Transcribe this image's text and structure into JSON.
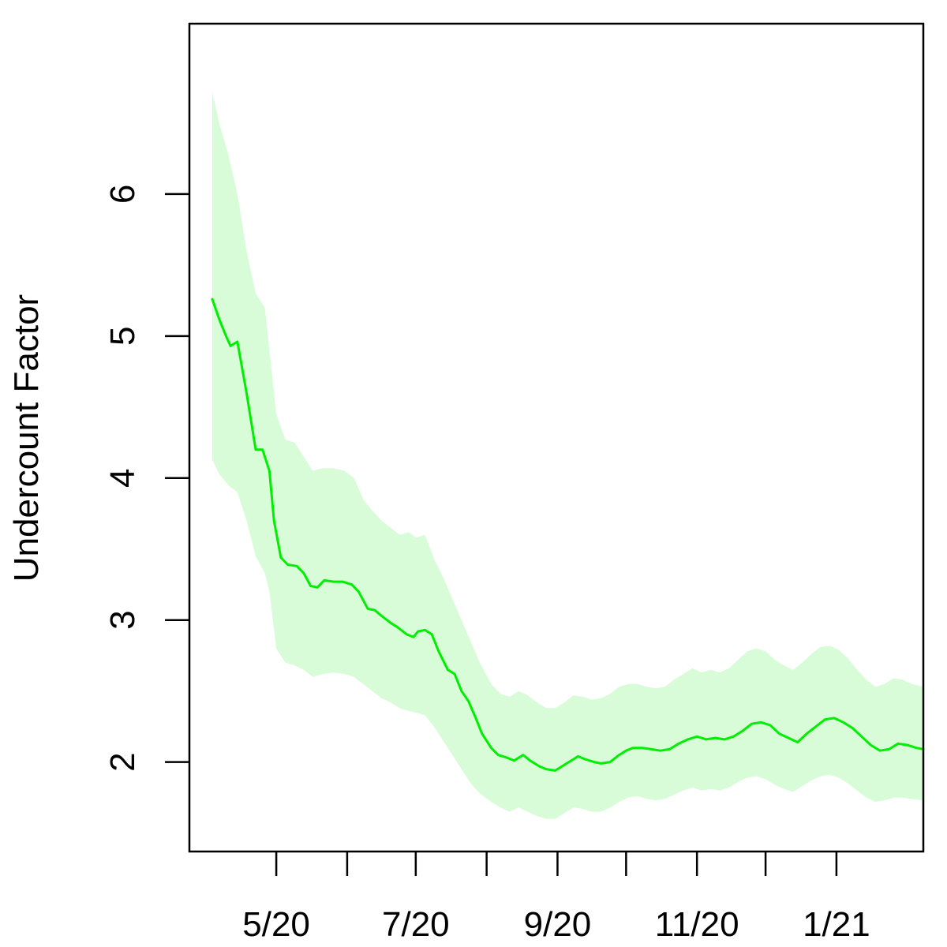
{
  "chart_data": {
    "type": "line",
    "title": "",
    "xlabel": "",
    "ylabel": "Undercount Factor",
    "x_unit": "date",
    "xlim": [
      "2020-03-24",
      "2021-02-08"
    ],
    "ylim": [
      1.37,
      7.2
    ],
    "grid": false,
    "legend": "none",
    "x_ticks": [
      {
        "date": "2020-05-01",
        "label": "5/20"
      },
      {
        "date": "2020-06-01",
        "label": ""
      },
      {
        "date": "2020-07-01",
        "label": "7/20"
      },
      {
        "date": "2020-08-01",
        "label": ""
      },
      {
        "date": "2020-09-01",
        "label": "9/20"
      },
      {
        "date": "2020-10-01",
        "label": ""
      },
      {
        "date": "2020-11-01",
        "label": "11/20"
      },
      {
        "date": "2020-12-01",
        "label": ""
      },
      {
        "date": "2021-01-01",
        "label": "1/21"
      }
    ],
    "y_ticks": [
      {
        "value": 2,
        "label": "2"
      },
      {
        "value": 3,
        "label": "3"
      },
      {
        "value": 4,
        "label": "4"
      },
      {
        "value": 5,
        "label": "5"
      },
      {
        "value": 6,
        "label": "6"
      }
    ],
    "colors": {
      "line": "#00ee00",
      "band": "#d8fcd8"
    },
    "series": [
      {
        "style": "line",
        "points": [
          [
            "2020-04-03",
            5.26
          ],
          [
            "2020-04-06",
            5.12
          ],
          [
            "2020-04-09",
            5.0
          ],
          [
            "2020-04-11",
            4.93
          ],
          [
            "2020-04-14",
            4.96
          ],
          [
            "2020-04-18",
            4.6
          ],
          [
            "2020-04-22",
            4.2
          ],
          [
            "2020-04-25",
            4.2
          ],
          [
            "2020-04-28",
            4.05
          ],
          [
            "2020-04-30",
            3.7
          ],
          [
            "2020-05-03",
            3.44
          ],
          [
            "2020-05-06",
            3.39
          ],
          [
            "2020-05-10",
            3.38
          ],
          [
            "2020-05-13",
            3.33
          ],
          [
            "2020-05-16",
            3.24
          ],
          [
            "2020-05-19",
            3.23
          ],
          [
            "2020-05-22",
            3.28
          ],
          [
            "2020-05-26",
            3.27
          ],
          [
            "2020-05-30",
            3.27
          ],
          [
            "2020-06-03",
            3.25
          ],
          [
            "2020-06-06",
            3.2
          ],
          [
            "2020-06-10",
            3.08
          ],
          [
            "2020-06-13",
            3.07
          ],
          [
            "2020-06-16",
            3.03
          ],
          [
            "2020-06-20",
            2.98
          ],
          [
            "2020-06-23",
            2.95
          ],
          [
            "2020-06-27",
            2.9
          ],
          [
            "2020-06-30",
            2.88
          ],
          [
            "2020-07-02",
            2.92
          ],
          [
            "2020-07-05",
            2.93
          ],
          [
            "2020-07-08",
            2.9
          ],
          [
            "2020-07-11",
            2.78
          ],
          [
            "2020-07-15",
            2.65
          ],
          [
            "2020-07-18",
            2.62
          ],
          [
            "2020-07-21",
            2.5
          ],
          [
            "2020-07-24",
            2.43
          ],
          [
            "2020-07-27",
            2.32
          ],
          [
            "2020-07-30",
            2.2
          ],
          [
            "2020-08-03",
            2.1
          ],
          [
            "2020-08-06",
            2.05
          ],
          [
            "2020-08-10",
            2.03
          ],
          [
            "2020-08-13",
            2.01
          ],
          [
            "2020-08-17",
            2.05
          ],
          [
            "2020-08-20",
            2.01
          ],
          [
            "2020-08-24",
            1.97
          ],
          [
            "2020-08-27",
            1.95
          ],
          [
            "2020-08-31",
            1.94
          ],
          [
            "2020-09-03",
            1.97
          ],
          [
            "2020-09-06",
            2.0
          ],
          [
            "2020-09-10",
            2.04
          ],
          [
            "2020-09-13",
            2.02
          ],
          [
            "2020-09-17",
            2.0
          ],
          [
            "2020-09-20",
            1.99
          ],
          [
            "2020-09-24",
            2.0
          ],
          [
            "2020-09-28",
            2.05
          ],
          [
            "2020-10-01",
            2.08
          ],
          [
            "2020-10-04",
            2.1
          ],
          [
            "2020-10-08",
            2.1
          ],
          [
            "2020-10-12",
            2.09
          ],
          [
            "2020-10-16",
            2.08
          ],
          [
            "2020-10-20",
            2.09
          ],
          [
            "2020-10-24",
            2.13
          ],
          [
            "2020-10-28",
            2.16
          ],
          [
            "2020-11-01",
            2.18
          ],
          [
            "2020-11-05",
            2.16
          ],
          [
            "2020-11-09",
            2.17
          ],
          [
            "2020-11-13",
            2.16
          ],
          [
            "2020-11-17",
            2.18
          ],
          [
            "2020-11-21",
            2.22
          ],
          [
            "2020-11-25",
            2.27
          ],
          [
            "2020-11-29",
            2.28
          ],
          [
            "2020-12-03",
            2.26
          ],
          [
            "2020-12-07",
            2.2
          ],
          [
            "2020-12-11",
            2.17
          ],
          [
            "2020-12-15",
            2.14
          ],
          [
            "2020-12-19",
            2.2
          ],
          [
            "2020-12-23",
            2.25
          ],
          [
            "2020-12-27",
            2.3
          ],
          [
            "2020-12-31",
            2.31
          ],
          [
            "2021-01-04",
            2.28
          ],
          [
            "2021-01-08",
            2.24
          ],
          [
            "2021-01-12",
            2.18
          ],
          [
            "2021-01-16",
            2.12
          ],
          [
            "2021-01-20",
            2.08
          ],
          [
            "2021-01-24",
            2.09
          ],
          [
            "2021-01-28",
            2.13
          ],
          [
            "2021-02-01",
            2.12
          ],
          [
            "2021-02-05",
            2.1
          ],
          [
            "2021-02-08",
            2.09
          ]
        ]
      },
      {
        "style": "band",
        "upper": [
          [
            "2020-04-03",
            6.72
          ],
          [
            "2020-04-06",
            6.5
          ],
          [
            "2020-04-10",
            6.28
          ],
          [
            "2020-04-14",
            6.0
          ],
          [
            "2020-04-18",
            5.6
          ],
          [
            "2020-04-22",
            5.3
          ],
          [
            "2020-04-26",
            5.2
          ],
          [
            "2020-04-28",
            4.9
          ],
          [
            "2020-05-01",
            4.45
          ],
          [
            "2020-05-05",
            4.27
          ],
          [
            "2020-05-09",
            4.25
          ],
          [
            "2020-05-13",
            4.15
          ],
          [
            "2020-05-17",
            4.05
          ],
          [
            "2020-05-21",
            4.07
          ],
          [
            "2020-05-26",
            4.07
          ],
          [
            "2020-05-31",
            4.05
          ],
          [
            "2020-06-04",
            4.0
          ],
          [
            "2020-06-08",
            3.85
          ],
          [
            "2020-06-12",
            3.77
          ],
          [
            "2020-06-16",
            3.7
          ],
          [
            "2020-06-20",
            3.65
          ],
          [
            "2020-06-24",
            3.6
          ],
          [
            "2020-06-28",
            3.62
          ],
          [
            "2020-07-01",
            3.58
          ],
          [
            "2020-07-05",
            3.6
          ],
          [
            "2020-07-09",
            3.43
          ],
          [
            "2020-07-13",
            3.3
          ],
          [
            "2020-07-17",
            3.15
          ],
          [
            "2020-07-21",
            3.0
          ],
          [
            "2020-07-25",
            2.85
          ],
          [
            "2020-07-29",
            2.7
          ],
          [
            "2020-08-03",
            2.55
          ],
          [
            "2020-08-07",
            2.48
          ],
          [
            "2020-08-11",
            2.46
          ],
          [
            "2020-08-15",
            2.5
          ],
          [
            "2020-08-19",
            2.47
          ],
          [
            "2020-08-23",
            2.42
          ],
          [
            "2020-08-27",
            2.38
          ],
          [
            "2020-08-31",
            2.38
          ],
          [
            "2020-09-04",
            2.42
          ],
          [
            "2020-09-08",
            2.47
          ],
          [
            "2020-09-12",
            2.46
          ],
          [
            "2020-09-16",
            2.44
          ],
          [
            "2020-09-20",
            2.45
          ],
          [
            "2020-09-24",
            2.48
          ],
          [
            "2020-09-28",
            2.53
          ],
          [
            "2020-10-02",
            2.55
          ],
          [
            "2020-10-06",
            2.55
          ],
          [
            "2020-10-10",
            2.53
          ],
          [
            "2020-10-14",
            2.52
          ],
          [
            "2020-10-18",
            2.53
          ],
          [
            "2020-10-22",
            2.58
          ],
          [
            "2020-10-26",
            2.62
          ],
          [
            "2020-10-30",
            2.66
          ],
          [
            "2020-11-03",
            2.63
          ],
          [
            "2020-11-07",
            2.65
          ],
          [
            "2020-11-11",
            2.63
          ],
          [
            "2020-11-15",
            2.66
          ],
          [
            "2020-11-19",
            2.72
          ],
          [
            "2020-11-23",
            2.78
          ],
          [
            "2020-11-27",
            2.8
          ],
          [
            "2020-12-01",
            2.78
          ],
          [
            "2020-12-05",
            2.72
          ],
          [
            "2020-12-09",
            2.68
          ],
          [
            "2020-12-13",
            2.65
          ],
          [
            "2020-12-17",
            2.7
          ],
          [
            "2020-12-21",
            2.76
          ],
          [
            "2020-12-25",
            2.81
          ],
          [
            "2020-12-29",
            2.82
          ],
          [
            "2021-01-02",
            2.79
          ],
          [
            "2021-01-06",
            2.73
          ],
          [
            "2021-01-10",
            2.65
          ],
          [
            "2021-01-14",
            2.58
          ],
          [
            "2021-01-18",
            2.53
          ],
          [
            "2021-01-22",
            2.55
          ],
          [
            "2021-01-26",
            2.59
          ],
          [
            "2021-01-30",
            2.58
          ],
          [
            "2021-02-03",
            2.55
          ],
          [
            "2021-02-08",
            2.53
          ]
        ],
        "lower": [
          [
            "2020-04-03",
            4.13
          ],
          [
            "2020-04-06",
            4.03
          ],
          [
            "2020-04-10",
            3.95
          ],
          [
            "2020-04-14",
            3.9
          ],
          [
            "2020-04-18",
            3.7
          ],
          [
            "2020-04-22",
            3.45
          ],
          [
            "2020-04-26",
            3.33
          ],
          [
            "2020-04-28",
            3.2
          ],
          [
            "2020-05-01",
            2.8
          ],
          [
            "2020-05-05",
            2.7
          ],
          [
            "2020-05-09",
            2.68
          ],
          [
            "2020-05-13",
            2.65
          ],
          [
            "2020-05-17",
            2.6
          ],
          [
            "2020-05-21",
            2.62
          ],
          [
            "2020-05-26",
            2.63
          ],
          [
            "2020-05-31",
            2.62
          ],
          [
            "2020-06-04",
            2.6
          ],
          [
            "2020-06-08",
            2.55
          ],
          [
            "2020-06-12",
            2.5
          ],
          [
            "2020-06-16",
            2.45
          ],
          [
            "2020-06-20",
            2.42
          ],
          [
            "2020-06-24",
            2.38
          ],
          [
            "2020-06-28",
            2.36
          ],
          [
            "2020-07-01",
            2.35
          ],
          [
            "2020-07-05",
            2.33
          ],
          [
            "2020-07-09",
            2.25
          ],
          [
            "2020-07-13",
            2.15
          ],
          [
            "2020-07-17",
            2.05
          ],
          [
            "2020-07-21",
            1.95
          ],
          [
            "2020-07-25",
            1.85
          ],
          [
            "2020-07-29",
            1.78
          ],
          [
            "2020-08-03",
            1.72
          ],
          [
            "2020-08-07",
            1.68
          ],
          [
            "2020-08-11",
            1.65
          ],
          [
            "2020-08-15",
            1.68
          ],
          [
            "2020-08-19",
            1.65
          ],
          [
            "2020-08-23",
            1.62
          ],
          [
            "2020-08-27",
            1.6
          ],
          [
            "2020-08-31",
            1.6
          ],
          [
            "2020-09-04",
            1.64
          ],
          [
            "2020-09-08",
            1.68
          ],
          [
            "2020-09-12",
            1.67
          ],
          [
            "2020-09-16",
            1.65
          ],
          [
            "2020-09-20",
            1.65
          ],
          [
            "2020-09-24",
            1.68
          ],
          [
            "2020-09-28",
            1.72
          ],
          [
            "2020-10-02",
            1.75
          ],
          [
            "2020-10-06",
            1.76
          ],
          [
            "2020-10-10",
            1.74
          ],
          [
            "2020-10-14",
            1.73
          ],
          [
            "2020-10-18",
            1.74
          ],
          [
            "2020-10-22",
            1.77
          ],
          [
            "2020-10-26",
            1.8
          ],
          [
            "2020-10-30",
            1.82
          ],
          [
            "2020-11-03",
            1.8
          ],
          [
            "2020-11-07",
            1.81
          ],
          [
            "2020-11-11",
            1.8
          ],
          [
            "2020-11-15",
            1.82
          ],
          [
            "2020-11-19",
            1.86
          ],
          [
            "2020-11-23",
            1.89
          ],
          [
            "2020-11-27",
            1.9
          ],
          [
            "2020-12-01",
            1.88
          ],
          [
            "2020-12-05",
            1.84
          ],
          [
            "2020-12-09",
            1.81
          ],
          [
            "2020-12-13",
            1.79
          ],
          [
            "2020-12-17",
            1.83
          ],
          [
            "2020-12-21",
            1.87
          ],
          [
            "2020-12-25",
            1.9
          ],
          [
            "2020-12-29",
            1.91
          ],
          [
            "2021-01-02",
            1.89
          ],
          [
            "2021-01-06",
            1.85
          ],
          [
            "2021-01-10",
            1.8
          ],
          [
            "2021-01-14",
            1.75
          ],
          [
            "2021-01-18",
            1.72
          ],
          [
            "2021-01-22",
            1.73
          ],
          [
            "2021-01-26",
            1.75
          ],
          [
            "2021-01-30",
            1.75
          ],
          [
            "2021-02-03",
            1.74
          ],
          [
            "2021-02-08",
            1.73
          ]
        ]
      }
    ]
  }
}
